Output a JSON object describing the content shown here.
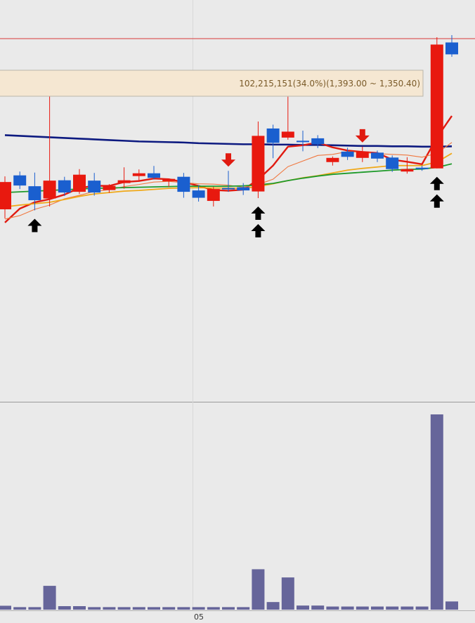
{
  "colors": {
    "background": "#eaeaea",
    "up_candle": "#e8190f",
    "down_candle": "#1a5fcf",
    "ma_navy": "#0d1a80",
    "ma_red": "#e01a10",
    "ma_orange": "#f07840",
    "ma_yellow": "#f0a818",
    "ma_green": "#1e9a2a",
    "volume_bar": "#66659a",
    "tooltip_bg": "#f5e7d2",
    "tooltip_text": "#7a5a28",
    "price_line": "#d83a3a",
    "buy_arrow": "#000000",
    "sell_arrow": "#e01a10"
  },
  "tooltip": {
    "text": "102,215,151(34.0%)(1,393.00 ~ 1,350.40)"
  },
  "chart_data": {
    "type": "candlestick",
    "x_tick_label": "05",
    "ylim": [
      0,
      100
    ],
    "volume_ylim": [
      0,
      100
    ],
    "candles": [
      {
        "o": 57.6,
        "h": 59.2,
        "l": 47.2,
        "c": 49.8,
        "dir": "up"
      },
      {
        "o": 59.5,
        "h": 60.6,
        "l": 55.6,
        "c": 56.6,
        "dir": "down"
      },
      {
        "o": 56.4,
        "h": 60.3,
        "l": 49.5,
        "c": 52.4,
        "dir": "down"
      },
      {
        "o": 52.9,
        "h": 84.4,
        "l": 50.6,
        "c": 58.0,
        "dir": "up"
      },
      {
        "o": 58.1,
        "h": 59.1,
        "l": 53.6,
        "c": 54.6,
        "dir": "down"
      },
      {
        "o": 54.8,
        "h": 61.3,
        "l": 54.2,
        "c": 59.7,
        "dir": "up"
      },
      {
        "o": 58.0,
        "h": 60.2,
        "l": 53.7,
        "c": 54.6,
        "dir": "down"
      },
      {
        "o": 55.3,
        "h": 57.0,
        "l": 54.5,
        "c": 56.5,
        "dir": "up"
      },
      {
        "o": 57.3,
        "h": 61.8,
        "l": 55.7,
        "c": 58.1,
        "dir": "up"
      },
      {
        "o": 59.3,
        "h": 61.2,
        "l": 57.9,
        "c": 60.1,
        "dir": "up"
      },
      {
        "o": 60.1,
        "h": 62.2,
        "l": 58.3,
        "c": 58.8,
        "dir": "down"
      },
      {
        "o": 57.8,
        "h": 58.6,
        "l": 56.2,
        "c": 58.5,
        "dir": "up"
      },
      {
        "o": 59.1,
        "h": 60.2,
        "l": 53.1,
        "c": 54.8,
        "dir": "down"
      },
      {
        "o": 55.2,
        "h": 56.7,
        "l": 52.0,
        "c": 53.1,
        "dir": "down"
      },
      {
        "o": 52.2,
        "h": 56.2,
        "l": 50.6,
        "c": 55.6,
        "dir": "up"
      },
      {
        "o": 55.9,
        "h": 60.8,
        "l": 54.8,
        "c": 55.6,
        "dir": "down"
      },
      {
        "o": 56.1,
        "h": 57.3,
        "l": 53.9,
        "c": 55.2,
        "dir": "down"
      },
      {
        "o": 54.9,
        "h": 74.9,
        "l": 53.0,
        "c": 70.8,
        "dir": "up"
      },
      {
        "o": 72.9,
        "h": 74.0,
        "l": 64.4,
        "c": 68.8,
        "dir": "down"
      },
      {
        "o": 70.3,
        "h": 82.0,
        "l": 69.7,
        "c": 72.0,
        "dir": "up"
      },
      {
        "o": 69.4,
        "h": 72.3,
        "l": 66.4,
        "c": 69.2,
        "dir": "down"
      },
      {
        "o": 70.1,
        "h": 71.0,
        "l": 67.3,
        "c": 68.4,
        "dir": "down"
      },
      {
        "o": 63.3,
        "h": 64.9,
        "l": 62.3,
        "c": 64.5,
        "dir": "up"
      },
      {
        "o": 66.3,
        "h": 67.4,
        "l": 63.9,
        "c": 64.8,
        "dir": "down"
      },
      {
        "o": 64.5,
        "h": 67.7,
        "l": 63.3,
        "c": 66.3,
        "dir": "up"
      },
      {
        "o": 66.0,
        "h": 66.6,
        "l": 63.3,
        "c": 64.3,
        "dir": "down"
      },
      {
        "o": 64.6,
        "h": 65.2,
        "l": 60.5,
        "c": 61.3,
        "dir": "down"
      },
      {
        "o": 60.6,
        "h": 64.7,
        "l": 60.0,
        "c": 61.3,
        "dir": "up"
      },
      {
        "o": 61.6,
        "h": 62.3,
        "l": 60.8,
        "c": 61.7,
        "dir": "down"
      },
      {
        "o": 61.5,
        "h": 99.0,
        "l": 61.5,
        "c": 96.9,
        "dir": "up"
      },
      {
        "o": 97.5,
        "h": 99.6,
        "l": 93.4,
        "c": 94.1,
        "dir": "down"
      }
    ],
    "volume": [
      2,
      1.3,
      1.3,
      12.2,
      1.8,
      1.8,
      1.3,
      1.3,
      1.3,
      1.3,
      1.3,
      1.3,
      1.3,
      1.3,
      1.3,
      1.3,
      1.3,
      20.7,
      3.9,
      16.5,
      2.1,
      2.1,
      1.6,
      1.6,
      1.6,
      1.6,
      1.6,
      1.6,
      1.6,
      100,
      4.2
    ],
    "moving_averages": [
      {
        "color": "ma_navy",
        "values": [
          71.0,
          70.8,
          70.6,
          70.4,
          70.2,
          70.0,
          69.8,
          69.6,
          69.4,
          69.2,
          69.1,
          69.0,
          68.9,
          68.7,
          68.6,
          68.5,
          68.4,
          68.4,
          68.3,
          68.3,
          68.2,
          68.2,
          68.1,
          68.0,
          67.9,
          67.9,
          67.8,
          67.8,
          67.7,
          67.7,
          67.8
        ]
      },
      {
        "color": "ma_red",
        "values": [
          46.0,
          50.0,
          51.8,
          52.7,
          54.0,
          55.9,
          56.5,
          56.5,
          57.6,
          57.9,
          58.6,
          58.4,
          57.6,
          56.5,
          55.3,
          55.1,
          55.4,
          58.3,
          62.3,
          67.7,
          68.1,
          68.9,
          67.5,
          66.6,
          66.2,
          65.9,
          64.0,
          63.4,
          62.7,
          70.3,
          76.5
        ]
      },
      {
        "color": "ma_orange",
        "values": [
          47.0,
          48.0,
          49.8,
          51.0,
          52.8,
          53.8,
          54.9,
          55.4,
          56.3,
          56.9,
          57.6,
          57.8,
          57.4,
          57.1,
          57.0,
          56.7,
          56.1,
          56.9,
          58.4,
          62.0,
          63.6,
          65.2,
          65.5,
          66.3,
          66.1,
          65.7,
          65.5,
          65.3,
          64.7,
          65.8,
          68.9
        ]
      },
      {
        "color": "ma_yellow",
        "values": [
          50.5,
          51.0,
          51.4,
          51.8,
          52.6,
          53.5,
          54.2,
          54.6,
          55.0,
          55.2,
          55.5,
          55.8,
          55.9,
          56.0,
          55.9,
          55.9,
          55.8,
          56.3,
          57.1,
          58.0,
          58.8,
          59.4,
          60.2,
          61.0,
          61.5,
          61.9,
          62.3,
          62.3,
          62.3,
          63.3,
          65.8
        ]
      },
      {
        "color": "ma_green",
        "values": [
          54.6,
          54.8,
          55.0,
          55.2,
          55.4,
          55.6,
          55.8,
          55.9,
          56.0,
          56.1,
          56.2,
          56.3,
          56.4,
          56.4,
          56.4,
          56.4,
          56.5,
          56.8,
          57.2,
          58.0,
          58.7,
          59.3,
          59.8,
          60.1,
          60.4,
          60.7,
          61.0,
          61.2,
          61.3,
          61.8,
          62.8
        ]
      }
    ],
    "signals": [
      {
        "type": "buy",
        "index": 2,
        "count": 1
      },
      {
        "type": "sell",
        "index": 15,
        "count": 1
      },
      {
        "type": "buy",
        "index": 17,
        "count": 2
      },
      {
        "type": "sell",
        "index": 24,
        "count": 1
      },
      {
        "type": "buy",
        "index": 29,
        "count": 2
      }
    ],
    "price_line_value": 98.6
  }
}
